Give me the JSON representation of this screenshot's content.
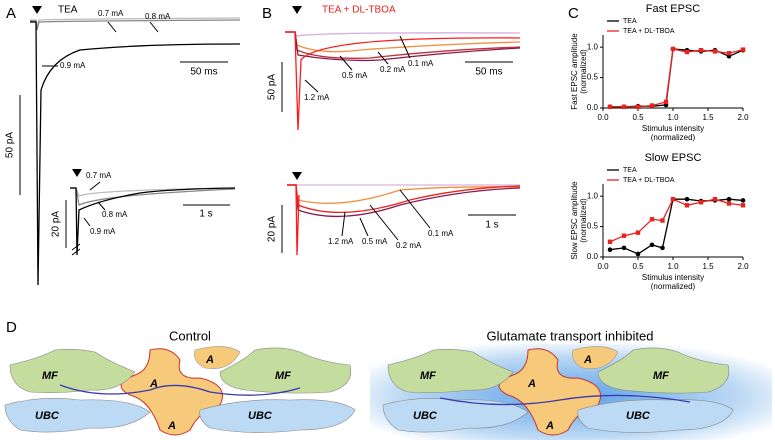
{
  "panel_labels": [
    "A",
    "B",
    "C",
    "D"
  ],
  "panel_a": {
    "title": "TEA",
    "top_labels": [
      "0.7 mA",
      "0.8 mA",
      "0.9 mA"
    ],
    "top_scale_x": "50 ms",
    "top_scale_y": "50 pA",
    "bottom_labels": [
      "0.7 mA",
      "0.8 mA",
      "0.9 mA"
    ],
    "bottom_scale_x": "1 s",
    "bottom_scale_y": "20 pA"
  },
  "panel_b": {
    "title": "TEA + DL-TBOA",
    "top_labels": [
      "1.2 mA",
      "0.5 mA",
      "0.2 mA",
      "0.1 mA"
    ],
    "top_scale_x": "50 ms",
    "top_scale_y": "50 pA",
    "bottom_labels": [
      "0.1 mA",
      "0.2 mA",
      "1.2 mA",
      "0.5 mA"
    ],
    "bottom_scale_x": "1 s",
    "bottom_scale_y": "20 pA"
  },
  "chart_data": [
    {
      "type": "line",
      "title": "Fast EPSC",
      "ylabel": [
        "Fast EPSC amplitude",
        "(normalized)"
      ],
      "xlabel": [
        "Stimulus intensity",
        "(normalized)"
      ],
      "xlim": [
        0,
        2
      ],
      "xticks": [
        {
          "value": 0,
          "label": "0.0"
        },
        {
          "value": 0.5,
          "label": "0.5"
        },
        {
          "value": 1,
          "label": "1.0"
        },
        {
          "value": 1.5,
          "label": "1.5"
        },
        {
          "value": 2,
          "label": "2.0"
        }
      ],
      "ylim": [
        0,
        1.2
      ],
      "yticks": [
        {
          "value": 0,
          "label": "0.0"
        },
        {
          "value": 0.5,
          "label": "0.5"
        },
        {
          "value": 1,
          "label": "1.0"
        }
      ],
      "x": [
        0.1,
        0.3,
        0.5,
        0.7,
        0.9,
        1.0,
        1.2,
        1.4,
        1.6,
        1.8,
        2.0
      ],
      "series": [
        {
          "name": "TEA",
          "color": "#000000",
          "values": [
            0.02,
            0.02,
            0.03,
            0.03,
            0.05,
            0.97,
            0.95,
            0.93,
            0.95,
            0.85,
            0.95
          ]
        },
        {
          "name": "TEA + DL-TBOA",
          "color": "#e8231e",
          "values": [
            0.02,
            0.02,
            0.02,
            0.04,
            0.1,
            0.97,
            0.92,
            0.95,
            0.93,
            0.9,
            0.96
          ]
        }
      ]
    },
    {
      "type": "line",
      "title": "Slow EPSC",
      "ylabel": [
        "Slow EPSC amplitude",
        "(normalized)"
      ],
      "xlabel": [
        "Stimulus intensity",
        "(normalized)"
      ],
      "xlim": [
        0,
        2
      ],
      "xticks": [
        {
          "value": 0,
          "label": "0.0"
        },
        {
          "value": 0.5,
          "label": "0.5"
        },
        {
          "value": 1,
          "label": "1.0"
        },
        {
          "value": 1.5,
          "label": "1.5"
        },
        {
          "value": 2,
          "label": "2.0"
        }
      ],
      "ylim": [
        0,
        1.2
      ],
      "yticks": [
        {
          "value": 0,
          "label": "0.0"
        },
        {
          "value": 0.5,
          "label": "0.5"
        },
        {
          "value": 1,
          "label": "1.0"
        }
      ],
      "x": [
        0.1,
        0.3,
        0.5,
        0.7,
        0.85,
        1.0,
        1.2,
        1.4,
        1.6,
        1.8,
        2.0
      ],
      "series": [
        {
          "name": "TEA",
          "color": "#000000",
          "values": [
            0.12,
            0.15,
            0.05,
            0.2,
            0.15,
            0.95,
            0.95,
            0.92,
            0.93,
            0.95,
            0.93
          ]
        },
        {
          "name": "TEA + DL-TBOA",
          "color": "#e8231e",
          "values": [
            0.25,
            0.35,
            0.4,
            0.62,
            0.6,
            0.95,
            0.85,
            0.9,
            0.95,
            0.88,
            0.85
          ]
        }
      ]
    }
  ],
  "diagram": {
    "left_title": "Control",
    "right_title": "Glutamate transport inhibited",
    "left_labels": [
      "MF",
      "MF",
      "UBC",
      "UBC",
      "A",
      "A",
      "A"
    ],
    "right_labels": [
      "MF",
      "MF",
      "UBC",
      "UBC",
      "A",
      "A",
      "A"
    ]
  }
}
